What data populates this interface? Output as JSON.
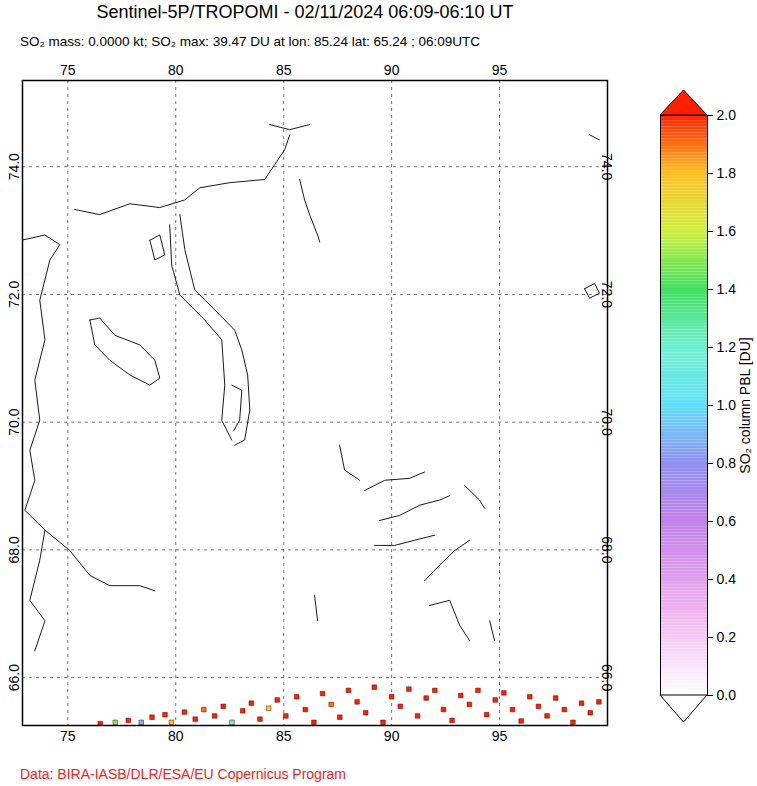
{
  "chart_data": {
    "type": "map",
    "title": "Sentinel-5P/TROPOMI - 02/11/2024 06:09-06:10 UT",
    "subtitle": "SO₂ mass: 0.0000 kt; SO₂ max: 39.47 DU at lon: 85.24 lat: 65.24 ; 06:09UTC",
    "caption": "Data: BIRA-IASB/DLR/ESA/EU Copernicus Program",
    "xlim": [
      72.9,
      100
    ],
    "ylim": [
      65.25,
      75.35
    ],
    "xticks": [
      75,
      80,
      85,
      90,
      95
    ],
    "yticks": [
      66,
      68,
      70,
      72,
      74
    ],
    "grid": true,
    "marker": "square",
    "coastlines": [
      [
        [
          75.32,
          73.33
        ],
        [
          76.48,
          73.25
        ],
        [
          77.87,
          73.42
        ],
        [
          79.26,
          73.36
        ],
        [
          80.42,
          73.48
        ],
        [
          81.11,
          73.67
        ],
        [
          82.5,
          73.75
        ],
        [
          84.12,
          73.8
        ],
        [
          84.58,
          74.03
        ],
        [
          85.05,
          74.27
        ],
        [
          85.28,
          74.5
        ]
      ],
      [
        [
          80.19,
          73.25
        ],
        [
          80.42,
          72.7
        ],
        [
          80.88,
          72.07
        ],
        [
          81.81,
          71.76
        ],
        [
          82.73,
          71.44
        ],
        [
          83.06,
          71.13
        ],
        [
          83.33,
          70.74
        ],
        [
          83.43,
          70.19
        ],
        [
          83.19,
          69.72
        ],
        [
          82.73,
          69.64
        ]
      ],
      [
        [
          79.72,
          73.09
        ],
        [
          79.81,
          72.46
        ],
        [
          80.19,
          71.99
        ],
        [
          81.34,
          71.6
        ],
        [
          82.13,
          71.29
        ],
        [
          82.27,
          70.58
        ],
        [
          82.13,
          70.03
        ],
        [
          82.59,
          69.72
        ]
      ],
      [
        [
          76.02,
          71.6
        ],
        [
          76.25,
          71.21
        ],
        [
          76.94,
          70.97
        ],
        [
          77.87,
          70.74
        ],
        [
          78.8,
          70.58
        ],
        [
          79.26,
          70.69
        ],
        [
          79.03,
          70.97
        ],
        [
          78.33,
          71.21
        ],
        [
          77.18,
          71.36
        ],
        [
          76.48,
          71.63
        ],
        [
          76.02,
          71.6
        ]
      ],
      [
        [
          72.87,
          72.85
        ],
        [
          73.94,
          72.93
        ],
        [
          74.63,
          72.78
        ],
        [
          74.17,
          72.54
        ],
        [
          73.7,
          71.91
        ],
        [
          73.94,
          71.29
        ],
        [
          73.47,
          70.66
        ],
        [
          73.7,
          70.03
        ],
        [
          73.24,
          69.56
        ],
        [
          73.47,
          69.09
        ],
        [
          73.01,
          68.62
        ],
        [
          73.94,
          68.31
        ],
        [
          73.7,
          67.84
        ],
        [
          73.24,
          67.21
        ],
        [
          73.94,
          66.89
        ],
        [
          73.47,
          66.42
        ]
      ],
      [
        [
          73.94,
          68.31
        ],
        [
          75.09,
          67.99
        ],
        [
          76.02,
          67.6
        ],
        [
          76.94,
          67.44
        ],
        [
          78.33,
          67.44
        ],
        [
          79.03,
          67.36
        ]
      ],
      [
        [
          85.74,
          73.8
        ],
        [
          85.97,
          73.48
        ],
        [
          86.2,
          73.25
        ],
        [
          86.57,
          72.93
        ],
        [
          86.67,
          72.82
        ]
      ],
      [
        [
          88.75,
          68.93
        ],
        [
          89.68,
          69.09
        ],
        [
          90.83,
          69.12
        ],
        [
          91.53,
          69.22
        ]
      ],
      [
        [
          89.44,
          68.46
        ],
        [
          90.37,
          68.54
        ],
        [
          91.3,
          68.7
        ],
        [
          92.22,
          68.78
        ],
        [
          92.69,
          68.85
        ]
      ],
      [
        [
          89.21,
          68.07
        ],
        [
          90.14,
          68.07
        ],
        [
          91.06,
          68.15
        ],
        [
          91.99,
          68.23
        ]
      ],
      [
        [
          91.53,
          67.52
        ],
        [
          92.22,
          67.76
        ],
        [
          92.92,
          67.99
        ],
        [
          93.61,
          68.15
        ]
      ],
      [
        [
          93.38,
          69.01
        ],
        [
          94.07,
          68.78
        ],
        [
          94.31,
          68.65
        ]
      ],
      [
        [
          87.59,
          69.64
        ],
        [
          87.82,
          69.25
        ],
        [
          88.52,
          69.09
        ]
      ],
      [
        [
          91.76,
          67.13
        ],
        [
          92.69,
          67.21
        ],
        [
          93.15,
          66.82
        ],
        [
          93.61,
          66.58
        ]
      ],
      [
        [
          94.54,
          66.89
        ],
        [
          94.77,
          66.58
        ]
      ],
      [
        [
          86.43,
          67.29
        ],
        [
          86.57,
          66.89
        ]
      ],
      [
        [
          98.94,
          72.09
        ],
        [
          99.4,
          72.17
        ],
        [
          99.63,
          72.02
        ],
        [
          99.17,
          71.94
        ],
        [
          98.94,
          72.09
        ]
      ],
      [
        [
          99.17,
          74.5
        ],
        [
          99.63,
          74.42
        ]
      ],
      [
        [
          84.35,
          74.66
        ],
        [
          85.28,
          74.58
        ],
        [
          86.2,
          74.66
        ]
      ],
      [
        [
          78.8,
          72.85
        ],
        [
          79.26,
          72.93
        ],
        [
          79.49,
          72.62
        ],
        [
          79.03,
          72.54
        ],
        [
          78.8,
          72.85
        ]
      ],
      [
        [
          82.59,
          70.58
        ],
        [
          83.06,
          70.5
        ],
        [
          82.96,
          70.03
        ],
        [
          82.69,
          69.87
        ]
      ]
    ],
    "points": [
      {
        "lon": 76.5,
        "lat": 65.28,
        "value": 2.1
      },
      {
        "lon": 77.2,
        "lat": 65.3,
        "value": 1.5
      },
      {
        "lon": 77.8,
        "lat": 65.33,
        "value": 2.4
      },
      {
        "lon": 78.4,
        "lat": 65.3,
        "value": 0.9
      },
      {
        "lon": 78.9,
        "lat": 65.38,
        "value": 2.2
      },
      {
        "lon": 79.5,
        "lat": 65.42,
        "value": 2.6
      },
      {
        "lon": 79.8,
        "lat": 65.3,
        "value": 1.8
      },
      {
        "lon": 80.4,
        "lat": 65.46,
        "value": 2.3
      },
      {
        "lon": 80.9,
        "lat": 65.35,
        "value": 2.5
      },
      {
        "lon": 81.3,
        "lat": 65.5,
        "value": 1.9
      },
      {
        "lon": 81.8,
        "lat": 65.4,
        "value": 2.7
      },
      {
        "lon": 82.2,
        "lat": 65.55,
        "value": 2.4
      },
      {
        "lon": 82.6,
        "lat": 65.3,
        "value": 1.2
      },
      {
        "lon": 83.1,
        "lat": 65.48,
        "value": 2.2
      },
      {
        "lon": 83.5,
        "lat": 65.6,
        "value": 2.5
      },
      {
        "lon": 83.9,
        "lat": 65.35,
        "value": 2.3
      },
      {
        "lon": 84.3,
        "lat": 65.52,
        "value": 1.7
      },
      {
        "lon": 84.7,
        "lat": 65.65,
        "value": 2.6
      },
      {
        "lon": 85.1,
        "lat": 65.4,
        "value": 2.4
      },
      {
        "lon": 85.6,
        "lat": 65.7,
        "value": 2.2
      },
      {
        "lon": 86.0,
        "lat": 65.5,
        "value": 2.8
      },
      {
        "lon": 86.4,
        "lat": 65.3,
        "value": 2.1
      },
      {
        "lon": 86.8,
        "lat": 65.75,
        "value": 2.3
      },
      {
        "lon": 87.2,
        "lat": 65.58,
        "value": 1.9
      },
      {
        "lon": 87.6,
        "lat": 65.38,
        "value": 2.5
      },
      {
        "lon": 88.0,
        "lat": 65.8,
        "value": 2.4
      },
      {
        "lon": 88.4,
        "lat": 65.62,
        "value": 2.6
      },
      {
        "lon": 88.8,
        "lat": 65.45,
        "value": 2.2
      },
      {
        "lon": 89.2,
        "lat": 65.85,
        "value": 2.3
      },
      {
        "lon": 89.6,
        "lat": 65.3,
        "value": 2.7
      },
      {
        "lon": 90.0,
        "lat": 65.7,
        "value": 2.1
      },
      {
        "lon": 90.4,
        "lat": 65.55,
        "value": 2.5
      },
      {
        "lon": 90.8,
        "lat": 65.82,
        "value": 2.4
      },
      {
        "lon": 91.2,
        "lat": 65.4,
        "value": 2.2
      },
      {
        "lon": 91.6,
        "lat": 65.68,
        "value": 2.6
      },
      {
        "lon": 92.0,
        "lat": 65.8,
        "value": 2.3
      },
      {
        "lon": 92.4,
        "lat": 65.5,
        "value": 2.8
      },
      {
        "lon": 92.8,
        "lat": 65.33,
        "value": 2.2
      },
      {
        "lon": 93.2,
        "lat": 65.72,
        "value": 2.4
      },
      {
        "lon": 93.6,
        "lat": 65.58,
        "value": 2.5
      },
      {
        "lon": 94.0,
        "lat": 65.8,
        "value": 2.1
      },
      {
        "lon": 94.4,
        "lat": 65.42,
        "value": 2.6
      },
      {
        "lon": 94.8,
        "lat": 65.65,
        "value": 2.3
      },
      {
        "lon": 95.2,
        "lat": 65.76,
        "value": 2.4
      },
      {
        "lon": 95.6,
        "lat": 65.5,
        "value": 2.2
      },
      {
        "lon": 96.0,
        "lat": 65.32,
        "value": 2.7
      },
      {
        "lon": 96.4,
        "lat": 65.7,
        "value": 2.3
      },
      {
        "lon": 96.8,
        "lat": 65.55,
        "value": 2.5
      },
      {
        "lon": 97.2,
        "lat": 65.4,
        "value": 2.2
      },
      {
        "lon": 97.6,
        "lat": 65.68,
        "value": 2.4
      },
      {
        "lon": 98.0,
        "lat": 65.5,
        "value": 2.6
      },
      {
        "lon": 98.4,
        "lat": 65.3,
        "value": 2.3
      },
      {
        "lon": 98.8,
        "lat": 65.6,
        "value": 2.1
      },
      {
        "lon": 99.2,
        "lat": 65.45,
        "value": 2.5
      },
      {
        "lon": 99.6,
        "lat": 65.62,
        "value": 2.4
      }
    ],
    "colorbar": {
      "label": "SO₂ column PBL [DU]",
      "range": [
        0,
        2
      ],
      "ticks": [
        {
          "value": 0,
          "label": "0.0"
        },
        {
          "value": 0.2,
          "label": "0.2"
        },
        {
          "value": 0.4,
          "label": "0.4"
        },
        {
          "value": 0.6,
          "label": "0.6"
        },
        {
          "value": 0.8,
          "label": "0.8"
        },
        {
          "value": 1,
          "label": "1.0"
        },
        {
          "value": 1.2,
          "label": "1.2"
        },
        {
          "value": 1.4,
          "label": "1.4"
        },
        {
          "value": 1.6,
          "label": "1.6"
        },
        {
          "value": 1.8,
          "label": "1.8"
        },
        {
          "value": 2,
          "label": "2.0"
        }
      ],
      "stops": [
        0,
        0.3,
        0.6,
        0.8,
        1.0,
        1.2,
        1.4,
        1.6,
        1.8,
        2.0
      ],
      "colors": [
        "#ffffff",
        "#f0b0f0",
        "#c080e8",
        "#9090f0",
        "#60e0f8",
        "#70f0d0",
        "#40e060",
        "#d0f040",
        "#ffc020",
        "#ff2000"
      ]
    }
  }
}
